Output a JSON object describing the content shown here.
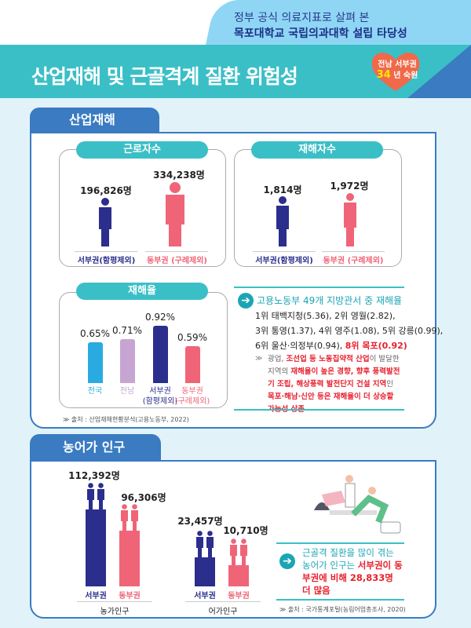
{
  "header": {
    "subtitle": "정부 공식 의료지표로 살펴 본",
    "subtitle2": "목포대학교 국립의과대학 설립 타당성",
    "title": "산업재해 및 근골격계 질환 위험성",
    "badge_line1": "전남 서부권",
    "badge_num": "34",
    "badge_line2": "년 숙원"
  },
  "colors": {
    "teal": "#3bbfc6",
    "blue": "#3a7bc2",
    "navy": "#2b2e8c",
    "pink": "#ef6577",
    "red": "#e8212e"
  },
  "section1": {
    "tab": "산업재해",
    "workers": {
      "title": "근로자수",
      "west_value": "196,826명",
      "east_value": "334,238명",
      "west_label": "서부권(함평제외)",
      "east_label": "동부권 (구례제외)"
    },
    "victims": {
      "title": "재해자수",
      "west_value": "1,814명",
      "east_value": "1,972명",
      "west_label": "서부권(함평제외)",
      "east_label": "동부권 (구례제외)"
    },
    "rate": {
      "title": "재해율",
      "bars": [
        {
          "label": "전국",
          "label2": "",
          "value": 0.65,
          "text": "0.65%",
          "color": "#29abe2"
        },
        {
          "label": "전남",
          "label2": "",
          "value": 0.71,
          "text": "0.71%",
          "color": "#c6a5d2"
        },
        {
          "label": "서부권",
          "label2": "(함평제외)",
          "value": 0.92,
          "text": "0.92%",
          "color": "#2b2e8c"
        },
        {
          "label": "동부권",
          "label2": "(구례제외)",
          "value": 0.59,
          "text": "0.59%",
          "color": "#ef6577"
        }
      ]
    },
    "info": {
      "heading": "고용노동부 49개 지방관서 중 재해율",
      "line1": "1위 태백지청(5.36), 2위 영월(2.82),",
      "line2": "3위 통영(1.37), 4위 영주(1.08), 5위 강릉(0.99),",
      "line3": "6위 울산·의정부(0.94), ",
      "line3_red": "8위 목포(0.92)",
      "note_a": "광업, ",
      "note_b": "조선업 등 노동집약적 산업",
      "note_c": "이 발달한 지역의 ",
      "note_d": "재해율이 높은 경향, 향후 풍력발전기 조립, 해상풍력 발전단지 건설 지역",
      "note_e": "인 ",
      "note_f": "목포·해남·신안 등은 재해율이 더 상승할 가능성 상존"
    },
    "source": "출처 : 산업재해현황분석(고용노동부, 2022)"
  },
  "section2": {
    "tab": "농어가 인구",
    "farm": {
      "label": "농가인구",
      "west_value": "112,392명",
      "east_value": "96,306명",
      "west_label": "서부권",
      "east_label": "동부권"
    },
    "fish": {
      "label": "어가인구",
      "west_value": "23,457명",
      "east_value": "10,710명",
      "west_label": "서부권",
      "east_label": "동부권"
    },
    "info": {
      "a": "근골격 질환을 많이 겪는 농어가 인구는 ",
      "b": "서부권이 동부권에 비해 28,833명 더 많음"
    },
    "source": "출처 : 국가통계포털(농림어업총조사, 2020)"
  }
}
